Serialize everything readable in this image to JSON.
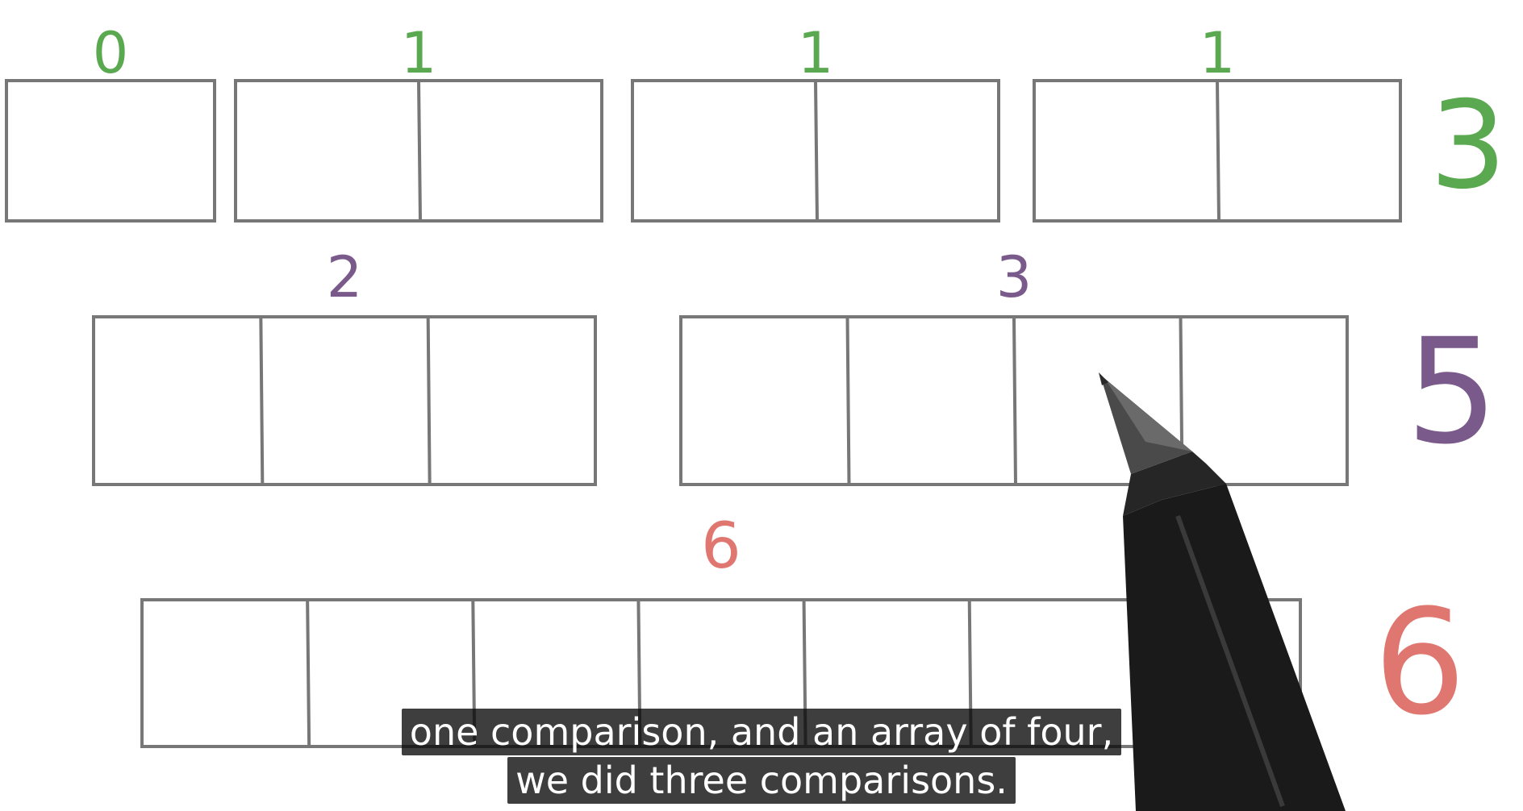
{
  "colors": {
    "box_stroke": "#777777",
    "green": "#5aa84f",
    "purple": "#7a5a8a",
    "red": "#e07670",
    "caption_bg": "#1c1c1c",
    "caption_text": "#ffffff"
  },
  "rows": [
    {
      "total": "3",
      "total_color": "green",
      "arrays": [
        {
          "label": "0",
          "cells": 1
        },
        {
          "label": "1",
          "cells": 2
        },
        {
          "label": "1",
          "cells": 2
        },
        {
          "label": "1",
          "cells": 2
        }
      ]
    },
    {
      "total": "5",
      "total_color": "purple",
      "arrays": [
        {
          "label": "2",
          "cells": 3
        },
        {
          "label": "3",
          "cells": 4
        }
      ]
    },
    {
      "total": "6",
      "total_color": "red",
      "arrays": [
        {
          "label": "6",
          "cells": 7
        }
      ]
    }
  ],
  "subtitle": {
    "line1": "one comparison, and an array of four,",
    "line2": "we did three comparisons."
  },
  "pen": {
    "name": "pen-icon"
  }
}
